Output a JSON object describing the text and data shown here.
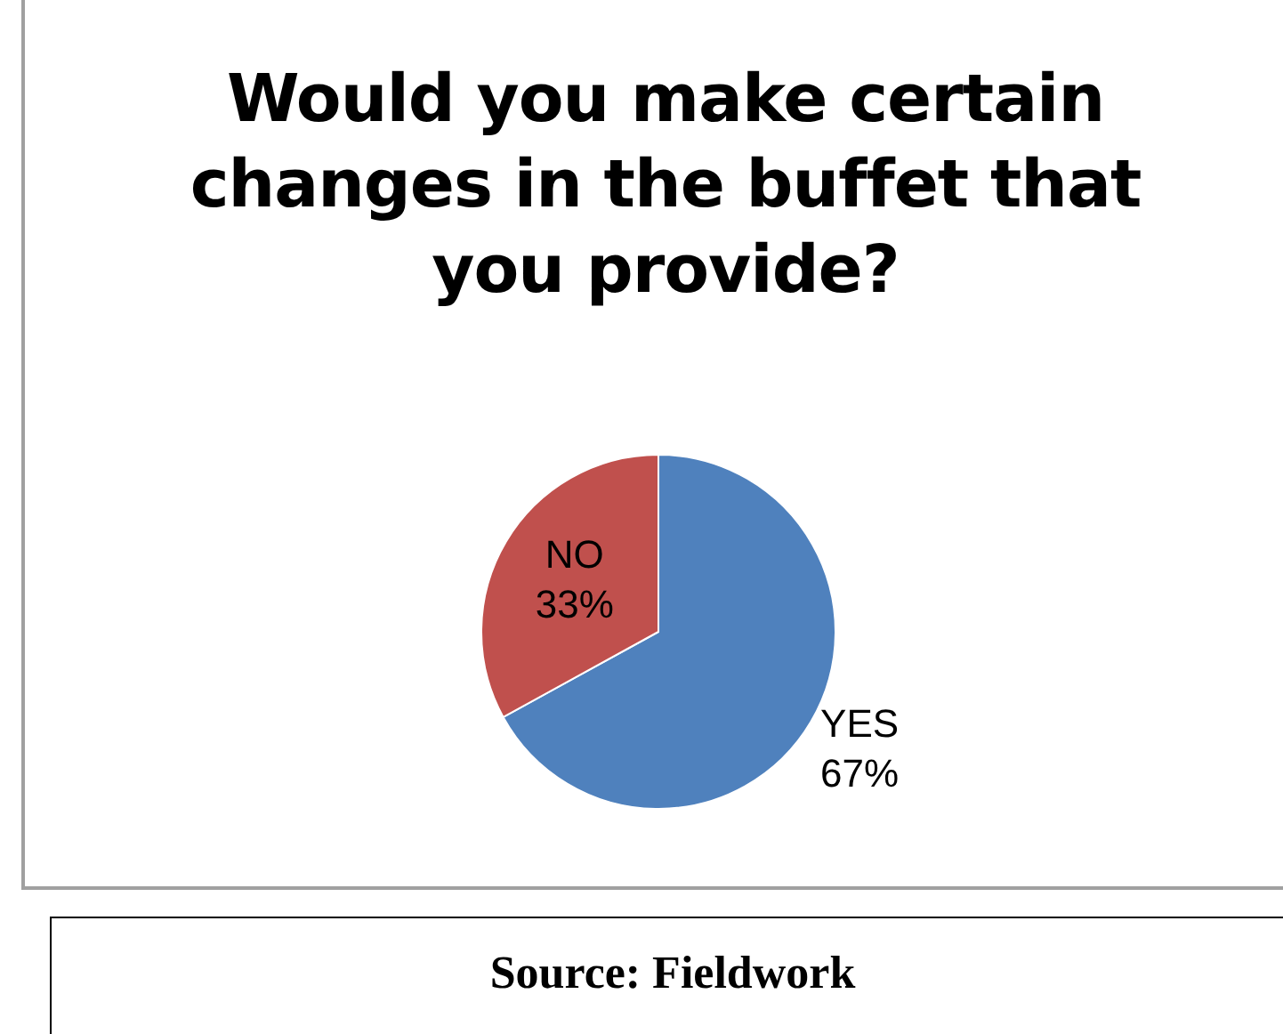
{
  "chart_data": {
    "type": "pie",
    "title": "Would you make certain changes in the buffet that you provide?",
    "categories": [
      "YES",
      "NO"
    ],
    "values": [
      67,
      33
    ],
    "colors": [
      "#4f81bd",
      "#c0504d"
    ],
    "value_labels": [
      "67%",
      "33%"
    ],
    "legend": false,
    "annotations": [
      "Source: Fieldwork"
    ]
  }
}
